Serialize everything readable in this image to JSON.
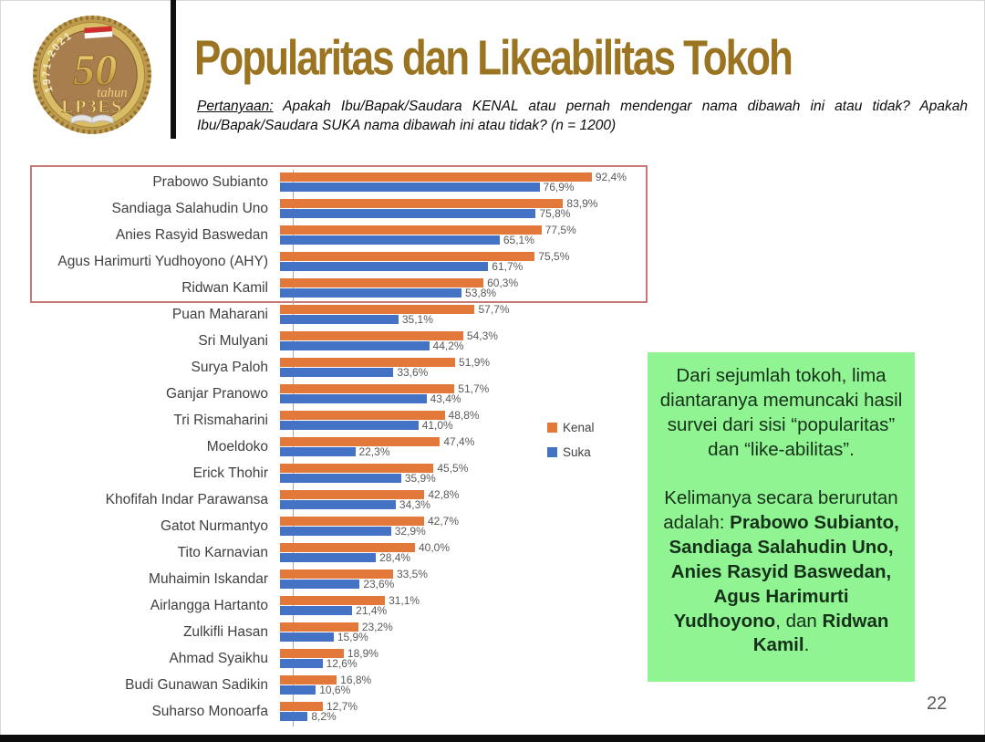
{
  "slide": {
    "page_number": "22",
    "colors": {
      "title_gold": "#9A7420",
      "kenal_orange": "#E2793B",
      "suka_blue": "#4472C4",
      "callout_green": "#90F492",
      "highlight_red_border": "#C97878",
      "axis_gray": "#A8A8A8",
      "value_label_gray": "#595959"
    }
  },
  "logo": {
    "years": "1971-2021",
    "number": "50",
    "word": "tahun",
    "org": "LP3ES"
  },
  "header": {
    "title": "Popularitas dan Likeabilitas Tokoh",
    "question_segments": [
      {
        "text": "Pertanyaan:",
        "underline": true
      },
      {
        "text": " Apakah Ibu/Bapak/Saudara KENAL atau pernah mendengar nama dibawah ini atau tidak? Apakah Ibu/Bapak/Saudara SUKA nama dibawah ini atau tidak? (n = 1200)",
        "underline": false
      }
    ]
  },
  "chart_data": {
    "type": "bar",
    "orientation": "horizontal",
    "title": "Popularitas dan Likeabilitas Tokoh",
    "xlim": [
      0,
      100
    ],
    "grid": false,
    "legend_position": "right-middle",
    "value_labels": "outside-end, comma decimal, percent",
    "highlighted_categories": [
      "Prabowo Subianto",
      "Sandiaga Salahudin Uno",
      "Anies Rasyid Baswedan",
      "Agus Harimurti Yudhoyono (AHY)",
      "Ridwan Kamil"
    ],
    "categories": [
      "Prabowo Subianto",
      "Sandiaga Salahudin Uno",
      "Anies Rasyid Baswedan",
      "Agus Harimurti Yudhoyono (AHY)",
      "Ridwan Kamil",
      "Puan Maharani",
      "Sri Mulyani",
      "Surya Paloh",
      "Ganjar Pranowo",
      "Tri Rismaharini",
      "Moeldoko",
      "Erick Thohir",
      "Khofifah Indar Parawansa",
      "Gatot Nurmantyo",
      "Tito Karnavian",
      "Muhaimin Iskandar",
      "Airlangga Hartanto",
      "Zulkifli Hasan",
      "Ahmad Syaikhu",
      "Budi Gunawan Sadikin",
      "Suharso Monoarfa"
    ],
    "series": [
      {
        "name": "Kenal",
        "color": "#E2793B",
        "values": [
          92.4,
          83.9,
          77.5,
          75.5,
          60.3,
          57.7,
          54.3,
          51.9,
          51.7,
          48.8,
          47.4,
          45.5,
          42.8,
          42.7,
          40.0,
          33.5,
          31.1,
          23.2,
          18.9,
          16.8,
          12.7
        ]
      },
      {
        "name": "Suka",
        "color": "#4472C4",
        "values": [
          76.9,
          75.8,
          65.1,
          61.7,
          53.8,
          35.1,
          44.2,
          33.6,
          43.4,
          41.0,
          22.3,
          35.9,
          34.3,
          32.9,
          28.4,
          23.6,
          21.4,
          15.9,
          12.6,
          10.6,
          8.2
        ]
      }
    ]
  },
  "legend": {
    "items": [
      {
        "label": "Kenal",
        "color": "#E2793B"
      },
      {
        "label": "Suka",
        "color": "#4472C4"
      }
    ]
  },
  "callout": {
    "para1": "Dari sejumlah tokoh, lima diantaranya memuncaki hasil survei dari sisi “popularitas” dan “like-abilitas”.",
    "para2_segments": [
      {
        "text": "Kelimanya secara berurutan adalah: ",
        "bold": false
      },
      {
        "text": "Prabowo Subianto, Sandiaga Salahudin Uno, Anies Rasyid Baswedan, Agus Harimurti Yudhoyono",
        "bold": true
      },
      {
        "text": ", dan ",
        "bold": false
      },
      {
        "text": "Ridwan Kamil",
        "bold": true
      },
      {
        "text": ".",
        "bold": false
      }
    ]
  }
}
